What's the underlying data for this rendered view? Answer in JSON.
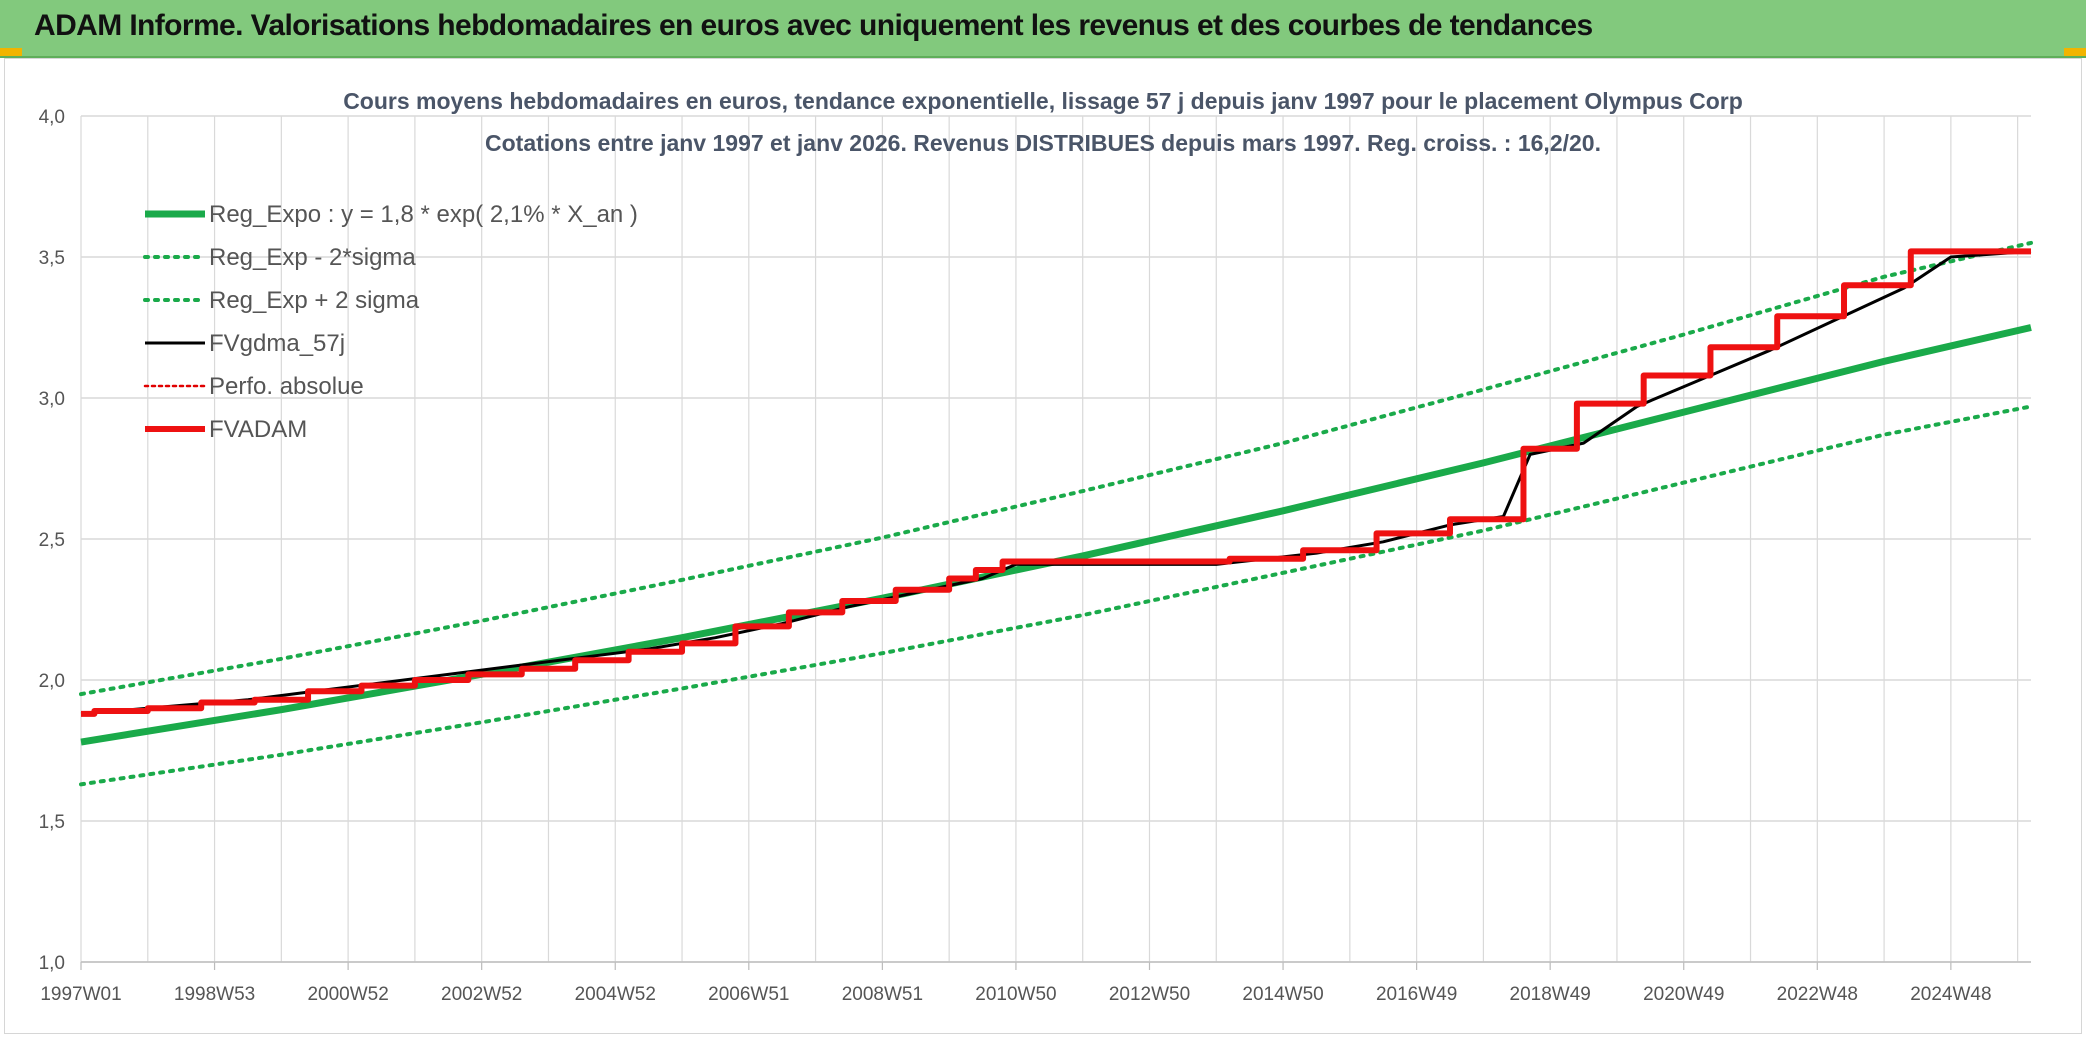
{
  "banner": {
    "title": "ADAM Informe. Valorisations hebdomadaires en euros avec uniquement les revenus et des courbes de tendances"
  },
  "colors": {
    "banner_bg": "#82c97d",
    "reg_expo": "#1aaa4a",
    "reg_band": "#1aaa4a",
    "fvgdma": "#000000",
    "perfo": "#e00000",
    "fvadam": "#ee1111",
    "grid": "#d9d9d9"
  },
  "chart_data": {
    "type": "line",
    "title": "Cours moyens hebdomadaires en euros, tendance exponentielle, lissage 57 j depuis janv 1997 pour le placement Olympus Corp",
    "subtitle": "Cotations entre janv 1997 et janv 2026. Revenus DISTRIBUES depuis mars 1997. Reg. croiss. : 16,2/20.",
    "xlabel": "",
    "ylabel": "",
    "ylim": [
      1.0,
      4.0
    ],
    "yticks": [
      "1,0",
      "1,5",
      "2,0",
      "2,5",
      "3,0",
      "3,5",
      "4,0"
    ],
    "xticks": [
      "1997W01",
      "1998W53",
      "2000W52",
      "2002W52",
      "2004W52",
      "2006W51",
      "2008W51",
      "2010W50",
      "2012W50",
      "2014W50",
      "2016W49",
      "2018W49",
      "2020W49",
      "2022W48",
      "2024W48"
    ],
    "xlim": [
      1997.0,
      2026.2
    ],
    "grid": true,
    "legend_position": "top-left",
    "legend": [
      {
        "label": "Reg_Expo : y = 1,8 * exp( 2,1% *  X_an )",
        "style": "solid-thick",
        "color": "#1aaa4a"
      },
      {
        "label": "Reg_Exp - 2*sigma",
        "style": "dotted",
        "color": "#1aaa4a"
      },
      {
        "label": "Reg_Exp + 2 sigma",
        "style": "dotted",
        "color": "#1aaa4a"
      },
      {
        "label": "FVgdma_57j",
        "style": "solid",
        "color": "#000000"
      },
      {
        "label": "Perfo. absolue",
        "style": "dotted-thin",
        "color": "#e00000"
      },
      {
        "label": "FVADAM",
        "style": "solid-thick",
        "color": "#ee1111"
      }
    ],
    "series": [
      {
        "name": "Reg_Expo : y = 1,8 * exp( 2,1% *  X_an )",
        "x": [
          1997.0,
          2000.0,
          2003.0,
          2006.0,
          2009.0,
          2012.0,
          2015.0,
          2018.0,
          2021.0,
          2024.0,
          2026.2
        ],
        "values": [
          1.78,
          1.895,
          2.02,
          2.15,
          2.29,
          2.44,
          2.6,
          2.77,
          2.95,
          3.13,
          3.25
        ]
      },
      {
        "name": "Reg_Exp - 2*sigma",
        "x": [
          1997.0,
          2000.0,
          2003.0,
          2006.0,
          2009.0,
          2012.0,
          2015.0,
          2018.0,
          2021.0,
          2024.0,
          2026.2
        ],
        "values": [
          1.63,
          1.735,
          1.85,
          1.97,
          2.095,
          2.23,
          2.38,
          2.53,
          2.7,
          2.87,
          2.97
        ]
      },
      {
        "name": "Reg_Exp + 2 sigma",
        "x": [
          1997.0,
          2000.0,
          2003.0,
          2006.0,
          2009.0,
          2012.0,
          2015.0,
          2018.0,
          2021.0,
          2024.0,
          2026.2
        ],
        "values": [
          1.95,
          2.075,
          2.21,
          2.355,
          2.505,
          2.67,
          2.84,
          3.03,
          3.225,
          3.43,
          3.55
        ]
      },
      {
        "name": "FVgdma_57j",
        "x": [
          1997.0,
          1997.5,
          1998.5,
          1999.5,
          2000.5,
          2001.5,
          2002.5,
          2003.5,
          2004.5,
          2005.5,
          2006.5,
          2007.5,
          2008.5,
          2009.5,
          2010.5,
          2011.0,
          2014.0,
          2015.5,
          2016.5,
          2017.5,
          2018.3,
          2018.7,
          2019.5,
          2020.3,
          2021.3,
          2022.3,
          2023.3,
          2024.3,
          2025.0,
          2026.2
        ],
        "values": [
          1.88,
          1.89,
          1.91,
          1.93,
          1.96,
          1.99,
          2.02,
          2.05,
          2.08,
          2.11,
          2.15,
          2.2,
          2.26,
          2.31,
          2.36,
          2.41,
          2.41,
          2.45,
          2.49,
          2.55,
          2.58,
          2.8,
          2.84,
          2.97,
          3.07,
          3.17,
          3.28,
          3.39,
          3.5,
          3.52
        ]
      },
      {
        "name": "FVADAM",
        "step": true,
        "x": [
          1997.0,
          1997.2,
          1998.0,
          1998.8,
          1999.6,
          2000.4,
          2001.2,
          2002.0,
          2002.8,
          2003.6,
          2004.4,
          2005.2,
          2006.0,
          2006.8,
          2007.6,
          2008.4,
          2009.2,
          2010.0,
          2010.4,
          2010.8,
          2011.2,
          2014.2,
          2015.3,
          2016.4,
          2017.5,
          2018.6,
          2019.4,
          2020.4,
          2021.4,
          2022.4,
          2023.4,
          2024.4,
          2026.2
        ],
        "values": [
          1.88,
          1.89,
          1.9,
          1.92,
          1.93,
          1.96,
          1.98,
          2.0,
          2.02,
          2.04,
          2.07,
          2.1,
          2.13,
          2.19,
          2.24,
          2.28,
          2.32,
          2.36,
          2.39,
          2.42,
          2.42,
          2.43,
          2.46,
          2.52,
          2.57,
          2.82,
          2.98,
          3.08,
          3.18,
          3.29,
          3.4,
          3.52,
          3.52
        ]
      }
    ]
  }
}
